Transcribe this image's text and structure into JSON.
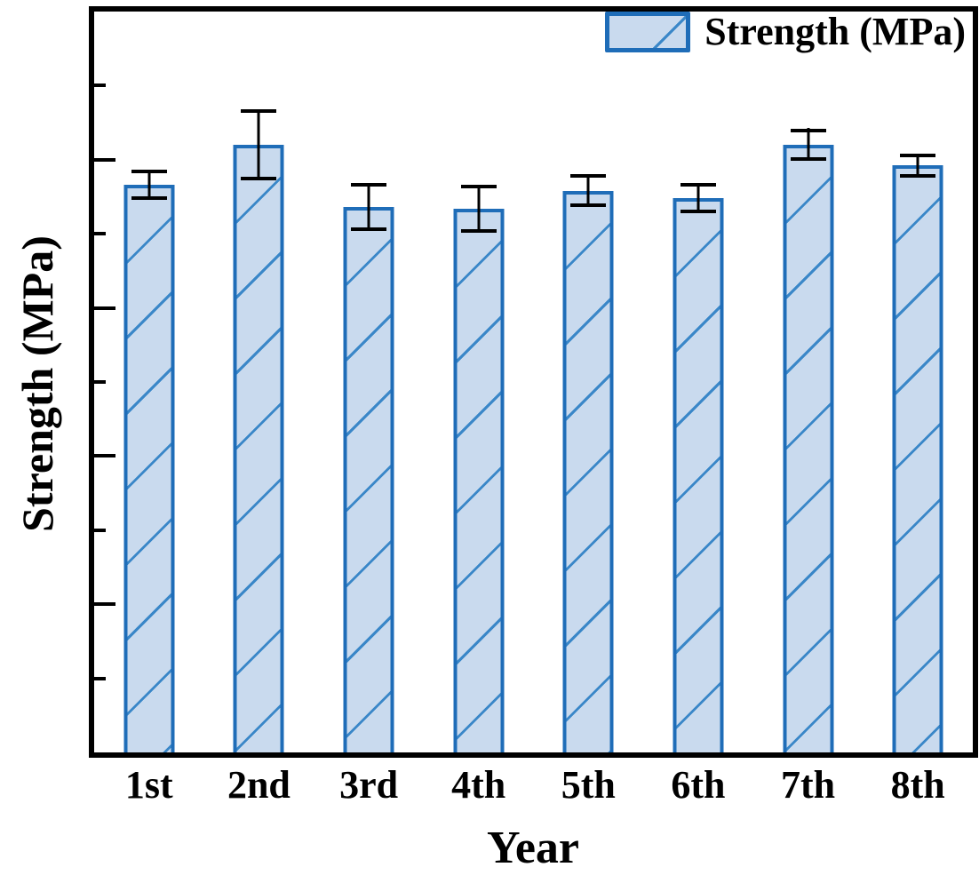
{
  "chart_data": {
    "type": "bar",
    "title": "",
    "xlabel": "Year",
    "ylabel": "Strength (MPa)",
    "legend_label": "Strength (MPa)",
    "legend_position": "upper right",
    "categories": [
      "1st",
      "2nd",
      "3rd",
      "4th",
      "5th",
      "6th",
      "7th",
      "8th"
    ],
    "values": [
      3.83,
      4.1,
      3.68,
      3.67,
      3.79,
      3.74,
      4.1,
      3.96
    ],
    "errors": [
      0.1,
      0.24,
      0.16,
      0.16,
      0.11,
      0.1,
      0.11,
      0.08
    ],
    "value_units": "y-axis divisions (axis has tick marks but no numeric labels)",
    "y_axis": {
      "numeric_labels_visible": false,
      "ylim": [
        0,
        5
      ],
      "major_tick_values": [
        1,
        2,
        3,
        4
      ],
      "minor_tick_values": [
        0.5,
        1.5,
        2.5,
        3.5,
        4.5
      ],
      "ticks_direction": "in"
    },
    "grid": false,
    "bar_style": "hatched-diagonal",
    "colors": {
      "bar_fill": "#c9daee",
      "bar_edge": "#1f6db8",
      "hatch_line": "#3a87c8",
      "error_bar": "#000000",
      "axis_frame": "#000000",
      "text": "#000000",
      "background": "#ffffff"
    }
  }
}
